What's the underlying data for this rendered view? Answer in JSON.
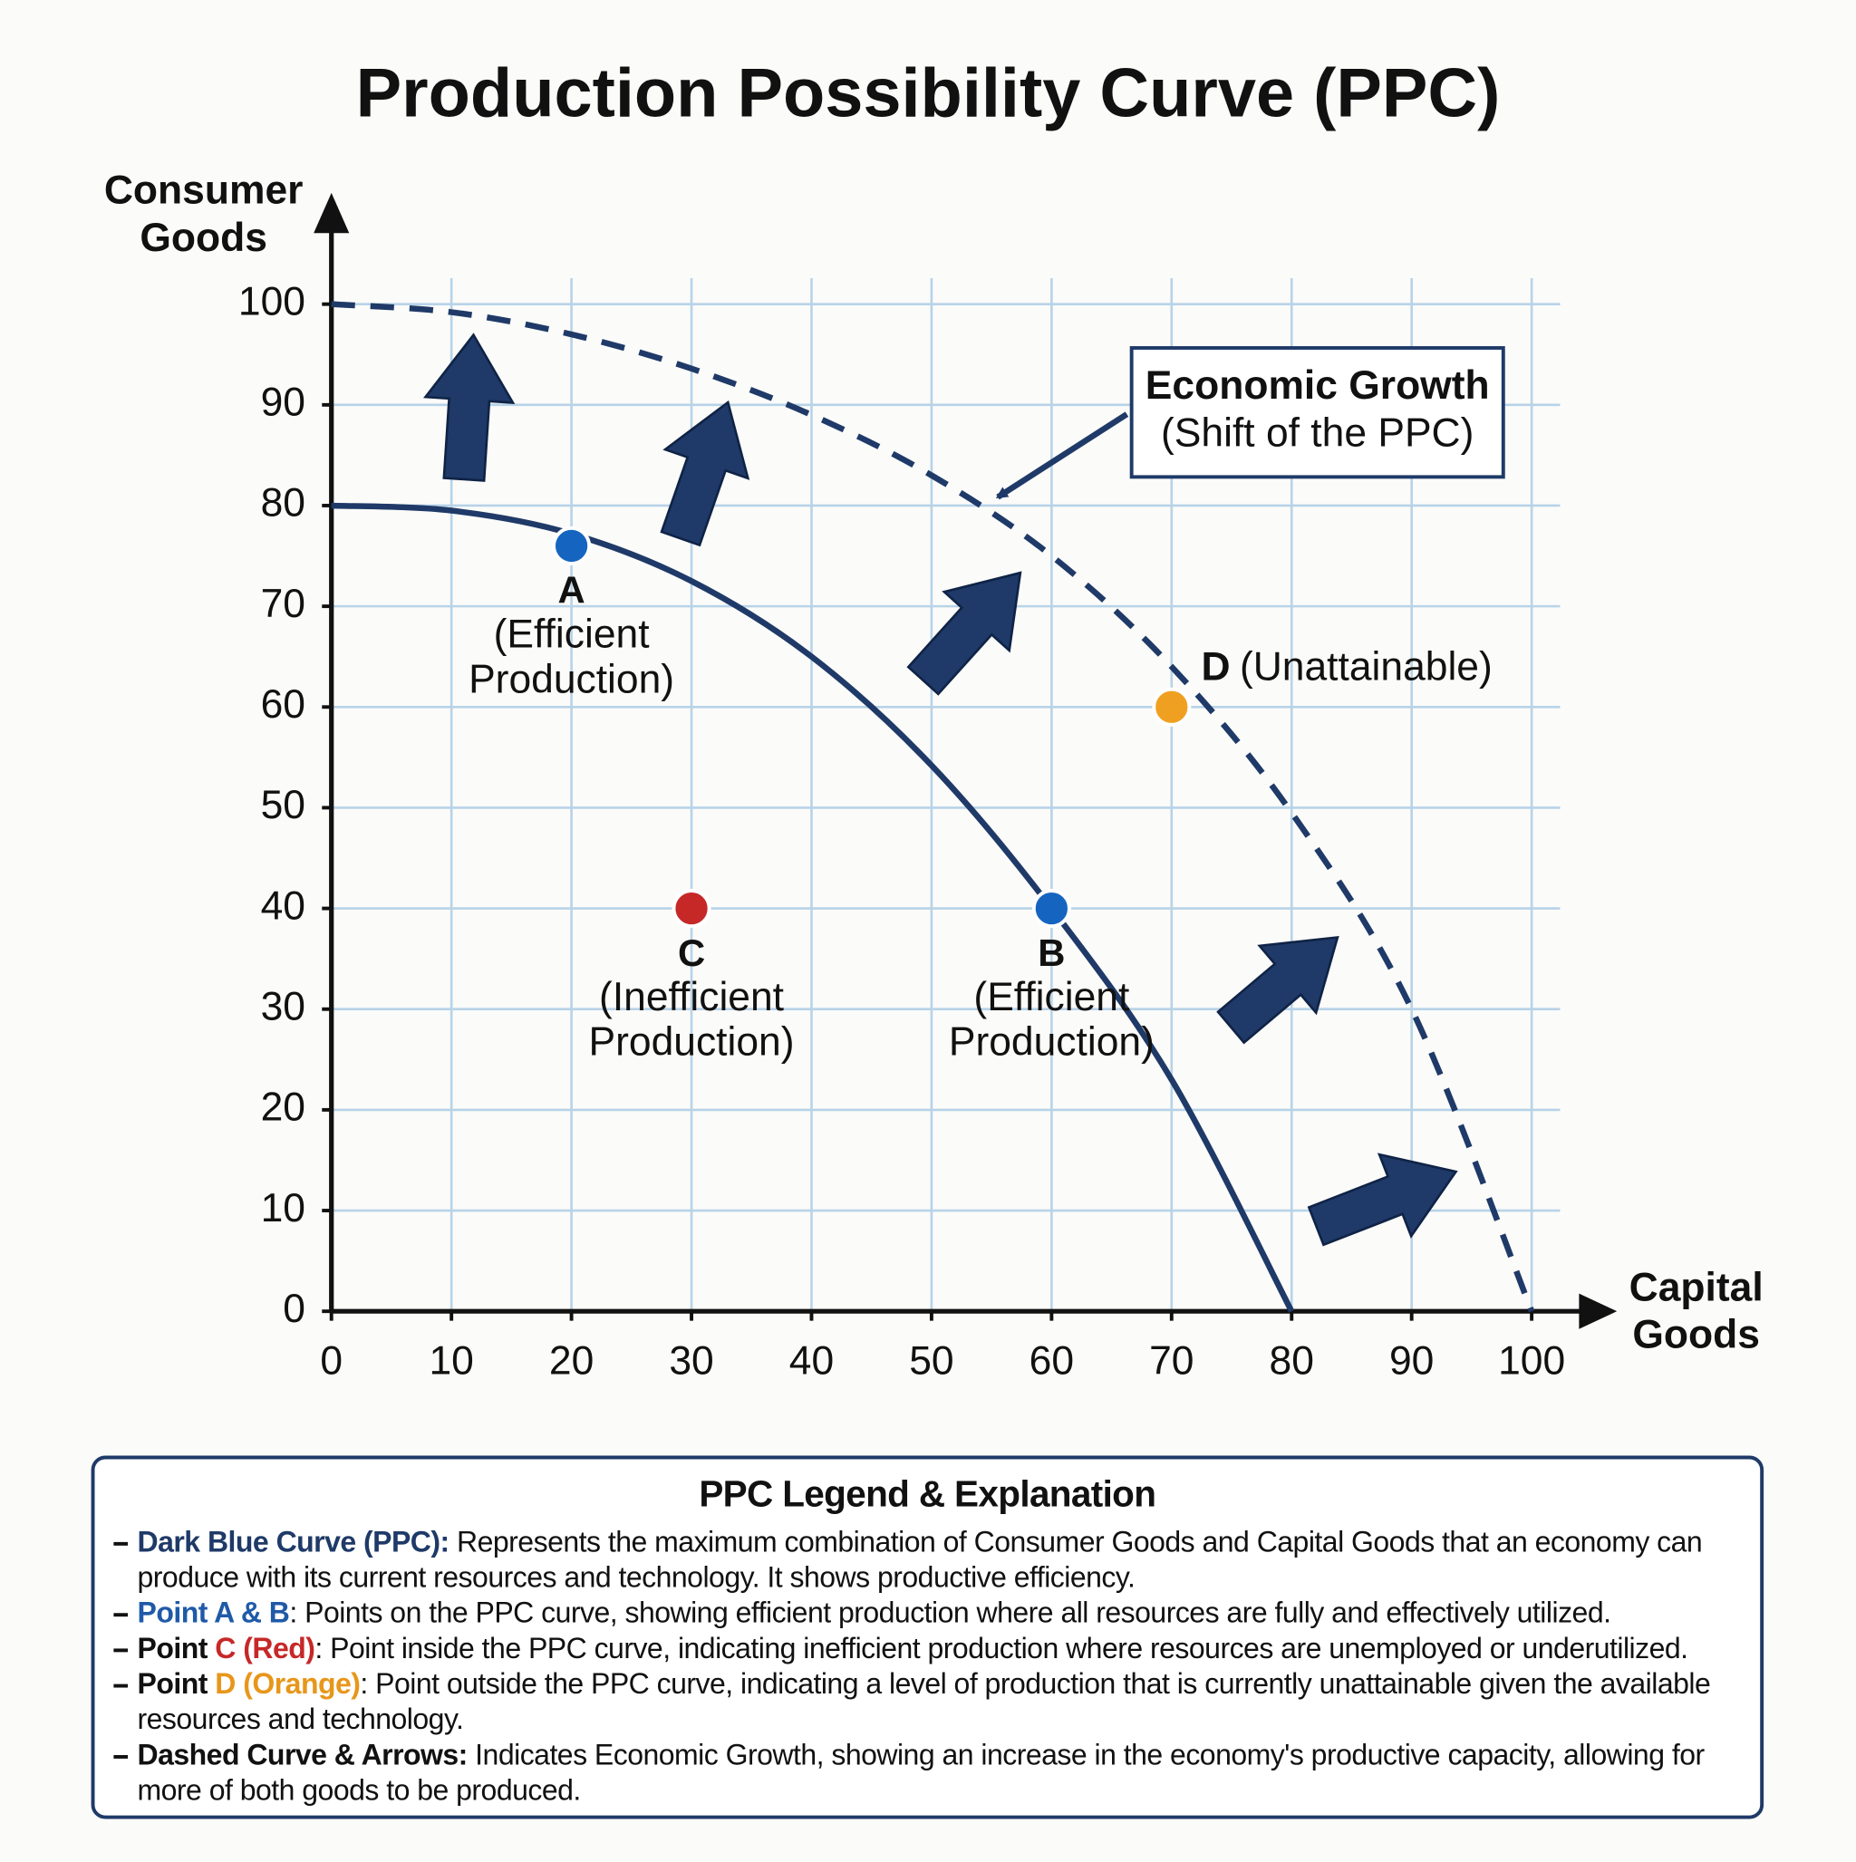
{
  "chart_data": {
    "type": "line",
    "title": "Production Possibility Curve (PPC)",
    "ylabel": [
      "Consumer",
      "Goods"
    ],
    "xlabel": [
      "Capital",
      "Goods"
    ],
    "xlim": [
      0,
      100
    ],
    "ylim": [
      0,
      100
    ],
    "xticks": [
      0,
      10,
      20,
      30,
      40,
      50,
      60,
      70,
      80,
      90,
      100
    ],
    "yticks": [
      0,
      10,
      20,
      30,
      40,
      50,
      60,
      70,
      80,
      90,
      100
    ],
    "grid": true,
    "series": [
      {
        "color": "#1f3a68",
        "style": "solid",
        "x": [
          0,
          10,
          20,
          30,
          40,
          50,
          60,
          70,
          80
        ],
        "values": [
          80,
          79.5,
          77.2,
          72.5,
          65,
          54.2,
          40,
          23,
          0
        ]
      },
      {
        "color": "#1f3a68",
        "style": "dashed",
        "x": [
          0,
          10,
          20,
          30,
          40,
          50,
          60,
          70,
          80,
          90,
          100
        ],
        "values": [
          100,
          99.2,
          97,
          93.6,
          89,
          83,
          75,
          64,
          49.5,
          30,
          0
        ]
      }
    ],
    "points": [
      {
        "name": "A",
        "x": 20,
        "value": 76,
        "color": "#1565c0",
        "label": [
          "(Efficient",
          "Production)"
        ],
        "label_side": "below"
      },
      {
        "name": "B",
        "x": 60,
        "value": 40,
        "color": "#1565c0",
        "label": [
          "(Efficient",
          "Production)"
        ],
        "label_side": "below"
      },
      {
        "name": "C",
        "x": 30,
        "value": 40,
        "color": "#c62828",
        "label": [
          "(Inefficient",
          "Production)"
        ],
        "label_side": "below"
      },
      {
        "name": "D",
        "x": 70,
        "value": 60,
        "color": "#f0a020",
        "label": [
          "(Unattainable)"
        ],
        "label_side": "above-right"
      }
    ],
    "annotation": [
      "Economic Growth",
      "(Shift of the PPC)"
    ]
  },
  "legend": {
    "title": "PPC Legend & Explanation",
    "items": [
      [
        {
          "text": "Dark Blue Curve (PPC):",
          "color": "#1f3a68",
          "bold": true
        },
        {
          "text": " Represents the maximum combination of Consumer Goods and Capital Goods that an economy can produce with its current resources and technology. It shows productive efficiency."
        }
      ],
      [
        {
          "text": "Point A & B",
          "color": "#1f5aa8",
          "bold": true
        },
        {
          "text": ": Points on the PPC curve, showing efficient production where all resources are fully and effectively utilized."
        }
      ],
      [
        {
          "text": "Point",
          "bold": true
        },
        {
          "text": " "
        },
        {
          "text": "C (Red)",
          "color": "#c62828",
          "bold": true
        },
        {
          "text": ": Point inside the PPC curve, indicating inefficient production where resources are unemployed or underutilized."
        }
      ],
      [
        {
          "text": "Point",
          "bold": true
        },
        {
          "text": " "
        },
        {
          "text": "D (Orange)",
          "color": "#e8961a",
          "bold": true
        },
        {
          "text": ": Point outside the PPC curve, indicating a level of production that is currently unattainable given the available resources and technology."
        }
      ],
      [
        {
          "text": "Dashed Curve & Arrows:",
          "bold": true
        },
        {
          "text": " Indicates Economic Growth, showing an increase in the economy's productive capacity, allowing for more of both goods to be produced."
        }
      ]
    ]
  }
}
